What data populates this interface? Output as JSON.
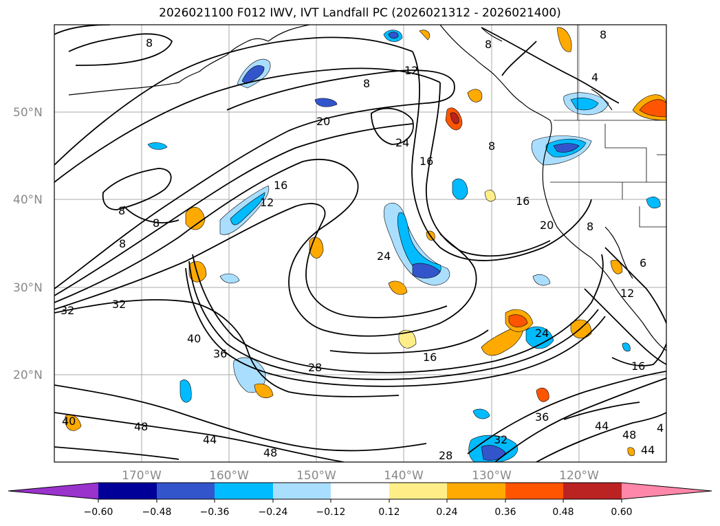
{
  "title": "2026021100 F012 IWV, IVT Landfall PC (2026021312 - 2026021400)",
  "lat_labels": [
    "50°N",
    "40°N",
    "30°N",
    "20°N"
  ],
  "lon_labels": [
    "170°W",
    "160°W",
    "150°W",
    "140°W",
    "130°W",
    "120°W"
  ],
  "colorbar": {
    "colors": [
      "#9933cc",
      "#000099",
      "#3355cc",
      "#00bbff",
      "#aadeff",
      "#ffffff",
      "#ffee88",
      "#ffaa00",
      "#ff5500",
      "#bb2222",
      "#ff88aa"
    ],
    "tick_labels": [
      "−0.60",
      "−0.48",
      "−0.36",
      "−0.24",
      "−0.12",
      "0.12",
      "0.24",
      "0.36",
      "0.48",
      "0.60"
    ]
  },
  "contour_labels": [
    "8",
    "12",
    "8",
    "20",
    "24",
    "16",
    "12",
    "16",
    "8",
    "8",
    "24",
    "16",
    "20",
    "32",
    "32",
    "40",
    "36",
    "28",
    "16",
    "24",
    "12",
    "16",
    "36",
    "44",
    "48",
    "40",
    "48",
    "44",
    "48",
    "32",
    "28",
    "4",
    "4",
    "8",
    "8",
    "8",
    "8",
    "8",
    "6",
    "44"
  ]
}
